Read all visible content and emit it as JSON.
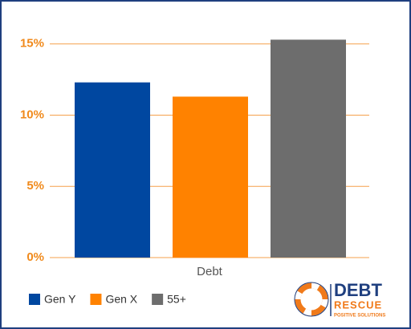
{
  "chart_data": {
    "type": "bar",
    "categories": [
      "Debt"
    ],
    "series": [
      {
        "name": "Gen Y",
        "color": "#0047a0",
        "values": [
          12.3
        ]
      },
      {
        "name": "Gen X",
        "color": "#ff8200",
        "values": [
          11.3
        ]
      },
      {
        "name": "55+",
        "color": "#6d6d6d",
        "values": [
          15.3
        ]
      }
    ],
    "ylim": [
      0,
      16
    ],
    "yticks": [
      {
        "value": 0,
        "label": "0%"
      },
      {
        "value": 5,
        "label": "5%"
      },
      {
        "value": 10,
        "label": "10%"
      },
      {
        "value": 15,
        "label": "15%"
      }
    ],
    "grid": true,
    "grid_color": "#f5a04c",
    "tick_color": "#f08a1c",
    "legend": "bottom-left"
  },
  "logo": {
    "line1": "DEBT",
    "line2": "RESCUE",
    "line3": "POSITIVE SOLUTIONS"
  }
}
